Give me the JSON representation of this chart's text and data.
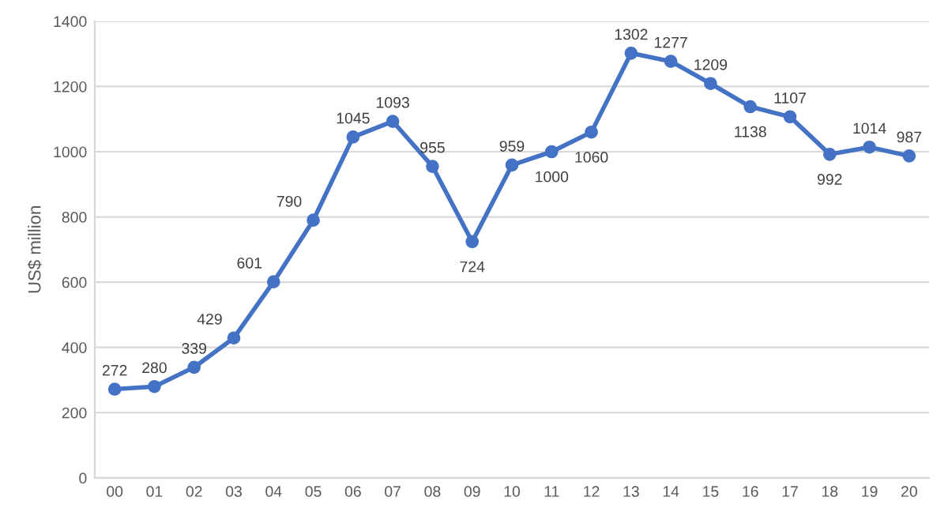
{
  "chart_data": {
    "type": "line",
    "ylabel": "US$ million",
    "categories": [
      "00",
      "01",
      "02",
      "03",
      "04",
      "05",
      "06",
      "07",
      "08",
      "09",
      "10",
      "11",
      "12",
      "13",
      "14",
      "15",
      "16",
      "17",
      "18",
      "19",
      "20"
    ],
    "series": [
      {
        "color": "#4472c4",
        "values": [
          272,
          280,
          339,
          429,
          601,
          790,
          1045,
          1093,
          955,
          724,
          959,
          1000,
          1060,
          1302,
          1277,
          1209,
          1138,
          1107,
          992,
          1014,
          987
        ]
      }
    ],
    "ylim": [
      0,
      1400
    ],
    "yticks": [
      0,
      200,
      400,
      600,
      800,
      1000,
      1200,
      1400
    ],
    "grid": "y",
    "marker": "circle",
    "line_style": "solid",
    "data_labels": true,
    "legend": false
  }
}
